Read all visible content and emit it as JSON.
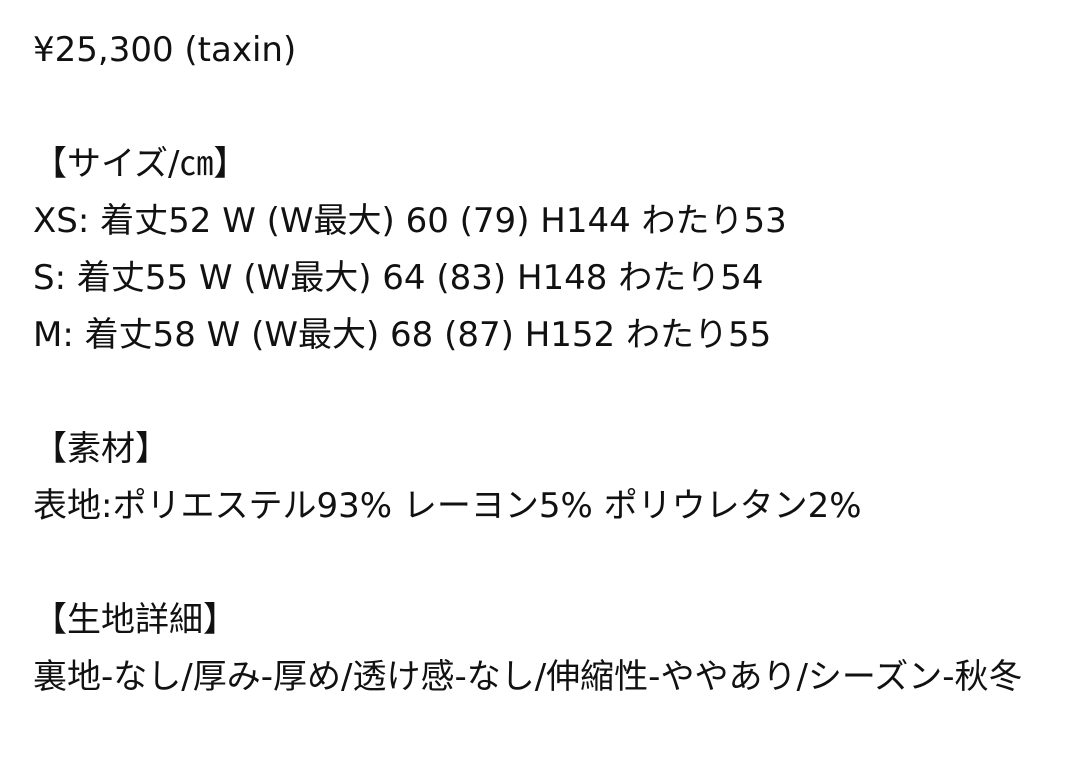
{
  "price": "¥25,300 (taxin)",
  "size": {
    "heading": "【サイズ/㎝】",
    "rows": [
      "XS: 着丈52 W (W最大) 60 (79) H144 わたり53",
      "S: 着丈55 W (W最大) 64 (83) H148 わたり54",
      "M: 着丈58 W (W最大) 68 (87) H152 わたり55"
    ]
  },
  "material": {
    "heading": "【素材】",
    "text": "表地:ポリエステル93% レーヨン5% ポリウレタン2%"
  },
  "details": {
    "heading": "【生地詳細】",
    "text": "裏地-なし/厚み-厚め/透け感-なし/伸縮性-ややあり/シーズン-秋冬"
  }
}
